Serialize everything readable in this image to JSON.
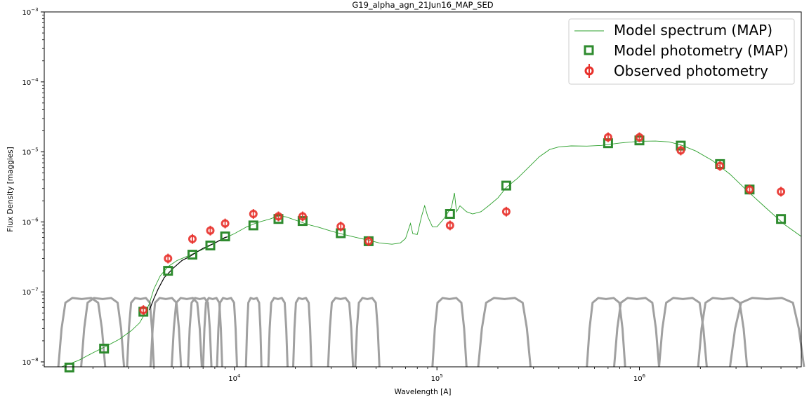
{
  "chart_data": {
    "type": "scatter",
    "title": "G19_alpha_agn_21Jun16_MAP_SED",
    "xlabel": "Wavelength [A]",
    "ylabel": "Flux Density [maggies]",
    "x_scale": "log",
    "y_scale": "log",
    "xlim": [
      1150,
      6300000
    ],
    "ylim": [
      8.5e-09,
      0.001
    ],
    "x_ticks": [
      {
        "value": 10000,
        "base": "10",
        "exp": "4"
      },
      {
        "value": 100000,
        "base": "10",
        "exp": "5"
      },
      {
        "value": 1000000,
        "base": "10",
        "exp": "6"
      }
    ],
    "y_ticks": [
      {
        "value": 1e-08,
        "base": "10",
        "exp": "−8"
      },
      {
        "value": 1e-07,
        "base": "10",
        "exp": "−7"
      },
      {
        "value": 1e-06,
        "base": "10",
        "exp": "−6"
      },
      {
        "value": 1e-05,
        "base": "10",
        "exp": "−5"
      },
      {
        "value": 0.0001,
        "base": "10",
        "exp": "−4"
      },
      {
        "value": 0.001,
        "base": "10",
        "exp": "−3"
      }
    ],
    "legend_position": "top-right",
    "colors": {
      "model_spectrum": "#2ca02c",
      "model_photometry": "#2e8b2e",
      "observed_photometry": "#e8302a",
      "observed_spectrum": "#000000",
      "filters": "#a0a0a0"
    },
    "series": [
      {
        "name": "Model spectrum (MAP)",
        "kind": "line",
        "points": [
          [
            1200,
            6.5e-09
          ],
          [
            1400,
            8.5e-09
          ],
          [
            1700,
            1.05e-08
          ],
          [
            2000,
            1.35e-08
          ],
          [
            2300,
            1.65e-08
          ],
          [
            2700,
            2.1e-08
          ],
          [
            3100,
            2.8e-08
          ],
          [
            3400,
            3.6e-08
          ],
          [
            3600,
            4.8e-08
          ],
          [
            3800,
            6.8e-08
          ],
          [
            4000,
            1.1e-07
          ],
          [
            4300,
            1.7e-07
          ],
          [
            4700,
            2.3e-07
          ],
          [
            5200,
            2.8e-07
          ],
          [
            5800,
            3.2e-07
          ],
          [
            6500,
            3.7e-07
          ],
          [
            7300,
            4.3e-07
          ],
          [
            8000,
            5e-07
          ],
          [
            9000,
            5.9e-07
          ],
          [
            10000,
            6.8e-07
          ],
          [
            11500,
            8.5e-07
          ],
          [
            13000,
            9.8e-07
          ],
          [
            15000,
            1.1e-06
          ],
          [
            16500,
            1.22e-06
          ],
          [
            18000,
            1.18e-06
          ],
          [
            20000,
            1.06e-06
          ],
          [
            23000,
            9.2e-07
          ],
          [
            26000,
            8.4e-07
          ],
          [
            30000,
            7.4e-07
          ],
          [
            34000,
            6.7e-07
          ],
          [
            38000,
            6.2e-07
          ],
          [
            42000,
            5.8e-07
          ],
          [
            46000,
            5.5e-07
          ],
          [
            52000,
            5e-07
          ],
          [
            60000,
            4.8e-07
          ],
          [
            66000,
            5e-07
          ],
          [
            70000,
            5.8e-07
          ],
          [
            74000,
            9.5e-07
          ],
          [
            76000,
            6.8e-07
          ],
          [
            80000,
            6.6e-07
          ],
          [
            84000,
            1.2e-06
          ],
          [
            87000,
            1.7e-06
          ],
          [
            90000,
            1.2e-06
          ],
          [
            95000,
            8.5e-07
          ],
          [
            100000,
            8.5e-07
          ],
          [
            108000,
            1.1e-06
          ],
          [
            114000,
            1.4e-06
          ],
          [
            118000,
            1.6e-06
          ],
          [
            122000,
            2.6e-06
          ],
          [
            125000,
            1.4e-06
          ],
          [
            130000,
            1.7e-06
          ],
          [
            140000,
            1.4e-06
          ],
          [
            150000,
            1.3e-06
          ],
          [
            165000,
            1.4e-06
          ],
          [
            180000,
            1.7e-06
          ],
          [
            200000,
            2.2e-06
          ],
          [
            220000,
            3.1e-06
          ],
          [
            250000,
            4.2e-06
          ],
          [
            280000,
            5.8e-06
          ],
          [
            320000,
            8.5e-06
          ],
          [
            360000,
            1.08e-05
          ],
          [
            400000,
            1.18e-05
          ],
          [
            460000,
            1.22e-05
          ],
          [
            550000,
            1.21e-05
          ],
          [
            650000,
            1.24e-05
          ],
          [
            800000,
            1.34e-05
          ],
          [
            1000000,
            1.42e-05
          ],
          [
            1200000,
            1.43e-05
          ],
          [
            1400000,
            1.39e-05
          ],
          [
            1600000,
            1.26e-05
          ],
          [
            1900000,
            1.03e-05
          ],
          [
            2300000,
            7.5e-06
          ],
          [
            2800000,
            4.8e-06
          ],
          [
            3400000,
            2.8e-06
          ],
          [
            4200000,
            1.6e-06
          ],
          [
            5200000,
            9.2e-07
          ],
          [
            6300000,
            6.2e-07
          ]
        ]
      },
      {
        "name": "Model photometry (MAP)",
        "kind": "square",
        "points": [
          [
            1530,
            8.3e-09
          ],
          [
            2270,
            1.55e-08
          ],
          [
            3550,
            5.2e-08
          ],
          [
            4700,
            2e-07
          ],
          [
            6200,
            3.4e-07
          ],
          [
            7600,
            4.6e-07
          ],
          [
            9000,
            6.2e-07
          ],
          [
            12400,
            8.9e-07
          ],
          [
            16500,
            1.1e-06
          ],
          [
            21700,
            1.03e-06
          ],
          [
            33500,
            6.9e-07
          ],
          [
            46000,
            5.3e-07
          ],
          [
            116000,
            1.3e-06
          ],
          [
            220000,
            3.3e-06
          ],
          [
            700000,
            1.33e-05
          ],
          [
            1000000,
            1.46e-05
          ],
          [
            1600000,
            1.23e-05
          ],
          [
            2500000,
            6.7e-06
          ],
          [
            3500000,
            2.9e-06
          ],
          [
            5000000,
            1.1e-06
          ]
        ]
      },
      {
        "name": "Observed photometry",
        "kind": "circle",
        "points": [
          [
            3550,
            5.5e-08
          ],
          [
            4700,
            3e-07
          ],
          [
            6200,
            5.7e-07
          ],
          [
            7600,
            7.5e-07
          ],
          [
            9000,
            9.5e-07
          ],
          [
            12400,
            1.3e-06
          ],
          [
            16500,
            1.2e-06
          ],
          [
            21700,
            1.2e-06
          ],
          [
            33500,
            8.6e-07
          ],
          [
            46000,
            5.3e-07
          ],
          [
            116000,
            8.9e-07
          ],
          [
            220000,
            1.4e-06
          ],
          [
            700000,
            1.62e-05
          ],
          [
            1000000,
            1.62e-05
          ],
          [
            1600000,
            1.05e-05
          ],
          [
            2500000,
            6.3e-06
          ],
          [
            3500000,
            2.9e-06
          ],
          [
            5000000,
            2.7e-06
          ]
        ]
      },
      {
        "kind": "line",
        "points": [
          [
            3800,
            5.5e-08
          ],
          [
            4000,
            8e-08
          ],
          [
            4200,
            1.1e-07
          ],
          [
            4500,
            1.6e-07
          ],
          [
            5000,
            2.2e-07
          ],
          [
            5500,
            2.8e-07
          ],
          [
            6000,
            3.2e-07
          ],
          [
            6500,
            3.7e-07
          ],
          [
            7000,
            4.2e-07
          ],
          [
            7500,
            4.6e-07
          ],
          [
            8000,
            5e-07
          ],
          [
            8500,
            5.5e-07
          ],
          [
            9000,
            6e-07
          ],
          [
            9200,
            6.1e-07
          ]
        ]
      }
    ],
    "filter_curves": [
      [
        1350,
        2300
      ],
      [
        1750,
        2850
      ],
      [
        2950,
        4000
      ],
      [
        3850,
        5450
      ],
      [
        4900,
        6900
      ],
      [
        5900,
        7700
      ],
      [
        7000,
        8700
      ],
      [
        8200,
        10300
      ],
      [
        11400,
        13600
      ],
      [
        14700,
        18300
      ],
      [
        19500,
        24000
      ],
      [
        29000,
        38500
      ],
      [
        39500,
        52000
      ],
      [
        95000,
        140000
      ],
      [
        160000,
        290000
      ],
      [
        550000,
        850000
      ],
      [
        750000,
        1250000
      ],
      [
        1250000,
        2150000
      ],
      [
        1950000,
        3400000
      ],
      [
        2800000,
        6500000
      ]
    ],
    "filter_peak": 8.2e-08
  }
}
